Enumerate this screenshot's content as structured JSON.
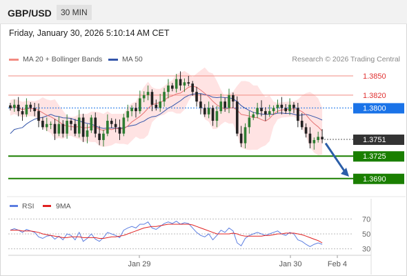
{
  "header": {
    "symbol": "GBP/USD",
    "timeframe": "30 MIN"
  },
  "datetime": "Friday, January 30, 2026 5:10:14 AM CET",
  "legend": {
    "ma20_label": "MA 20 + Bollinger Bands",
    "ma50_label": "MA 50",
    "copyright": "Research © 2026 Trading Central"
  },
  "rsi_legend": {
    "rsi_label": "RSI",
    "ma_label": "9MA"
  },
  "colors": {
    "resistance": "#f28b82",
    "support": "#1a7f00",
    "pivot": "#1a73e8",
    "current": "#333333",
    "bollinger": "#ffd9d9",
    "ma50": "#3355aa",
    "rsi": "#5b7de0",
    "rsi_ma": "#e02020",
    "up": "#2e7d32",
    "down": "#222222"
  },
  "chart_data": [
    {
      "type": "candlestick",
      "title": "GBP/USD",
      "x_ticks": [
        "Jan 29",
        "Jan 30",
        "Feb 4"
      ],
      "ylim": [
        1.3665,
        1.3865
      ],
      "price_levels": [
        {
          "label": "1.3850",
          "value": 1.385,
          "kind": "resistance"
        },
        {
          "label": "1.3820",
          "value": 1.382,
          "kind": "resistance"
        },
        {
          "label": "1.3800",
          "value": 1.38,
          "kind": "pivot"
        },
        {
          "label": "1.3751",
          "value": 1.3751,
          "kind": "current"
        },
        {
          "label": "1.3725",
          "value": 1.3725,
          "kind": "support"
        },
        {
          "label": "1.3690",
          "value": 1.369,
          "kind": "support"
        }
      ],
      "close_path": [
        1.38,
        1.3805,
        1.3795,
        1.379,
        1.3805,
        1.38,
        1.3795,
        1.378,
        1.377,
        1.3775,
        1.3775,
        1.376,
        1.3775,
        1.376,
        1.378,
        1.3775,
        1.376,
        1.3785,
        1.3755,
        1.3765,
        1.3785,
        1.376,
        1.375,
        1.376,
        1.378,
        1.3775,
        1.377,
        1.376,
        1.3785,
        1.3795,
        1.38,
        1.3795,
        1.3815,
        1.382,
        1.3825,
        1.3805,
        1.38,
        1.381,
        1.3825,
        1.3835,
        1.383,
        1.3845,
        1.3835,
        1.384,
        1.3838,
        1.3825,
        1.381,
        1.38,
        1.379,
        1.38,
        1.378,
        1.3795,
        1.381,
        1.38,
        1.382,
        1.381,
        1.376,
        1.3745,
        1.377,
        1.3785,
        1.379,
        1.38,
        1.3795,
        1.379,
        1.3795,
        1.38,
        1.3805,
        1.38,
        1.3795,
        1.3805,
        1.38,
        1.378,
        1.377,
        1.376,
        1.3745,
        1.375,
        1.3755,
        1.3751
      ],
      "ma_lines": [
        {
          "name": "MA 20"
        },
        {
          "name": "MA 50"
        }
      ],
      "subplot": {
        "name": "RSI",
        "y_ticks": [
          70,
          50,
          30
        ],
        "ylim": [
          25,
          75
        ],
        "rsi": [
          55,
          57,
          55,
          52,
          56,
          54,
          52,
          46,
          44,
          47,
          48,
          43,
          47,
          42,
          50,
          48,
          42,
          52,
          40,
          44,
          50,
          43,
          40,
          45,
          52,
          50,
          48,
          45,
          55,
          58,
          60,
          58,
          63,
          63,
          66,
          58,
          56,
          60,
          64,
          66,
          64,
          67,
          63,
          65,
          64,
          58,
          52,
          48,
          46,
          50,
          42,
          48,
          55,
          52,
          58,
          54,
          38,
          34,
          44,
          48,
          50,
          52,
          50,
          48,
          50,
          52,
          54,
          50,
          48,
          52,
          50,
          42,
          40,
          36,
          33,
          36,
          38,
          36
        ],
        "ma": [
          55,
          55,
          55,
          54,
          54,
          54,
          53,
          52,
          50,
          49,
          48,
          47,
          46,
          45,
          45,
          46,
          46,
          46,
          45,
          45,
          45,
          45,
          44,
          44,
          45,
          46,
          46,
          47,
          48,
          50,
          52,
          54,
          56,
          58,
          59,
          60,
          60,
          61,
          62,
          63,
          63,
          63,
          63,
          63,
          63,
          62,
          60,
          58,
          56,
          54,
          52,
          50,
          50,
          50,
          50,
          51,
          50,
          48,
          47,
          47,
          47,
          47,
          47,
          48,
          48,
          49,
          50,
          50,
          51,
          51,
          51,
          50,
          49,
          47,
          45,
          43,
          41,
          38
        ]
      }
    }
  ]
}
